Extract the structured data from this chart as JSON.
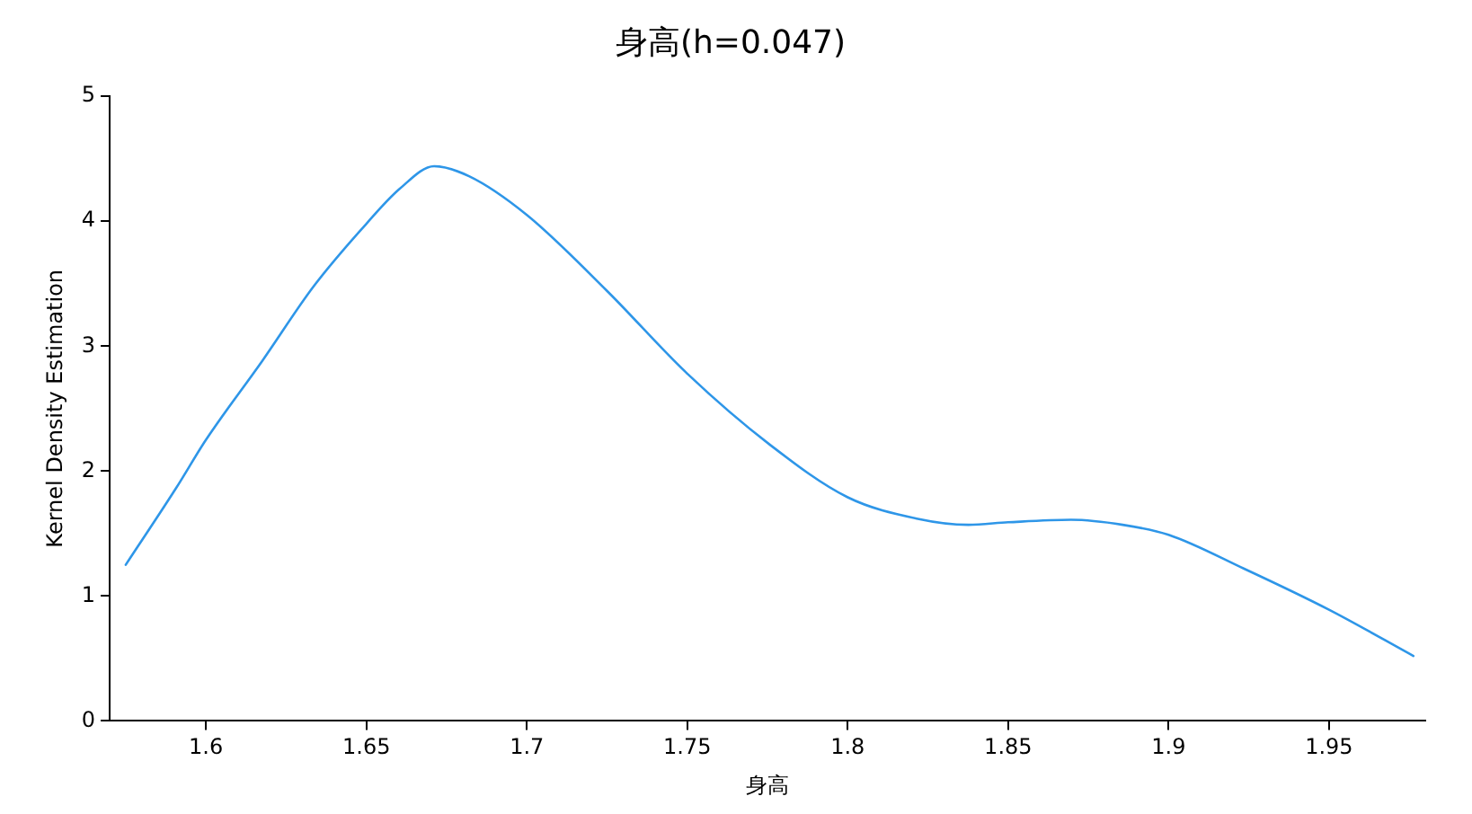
{
  "chart_data": {
    "type": "line",
    "title": "身高(h=0.047)",
    "xlabel": "身高",
    "ylabel": "Kernel Density Estimation",
    "xlim": [
      1.57,
      1.98
    ],
    "xticks": [
      1.6,
      1.65,
      1.7,
      1.75,
      1.8,
      1.85,
      1.9,
      1.95
    ],
    "ylim": [
      0,
      5
    ],
    "yticks": [
      0,
      1,
      2,
      3,
      4,
      5
    ],
    "grid": false,
    "legend": false,
    "marker": "none",
    "line_style": "solid",
    "series": [
      {
        "color": "#2e96e8",
        "x": [
          1.575,
          1.5906,
          1.6,
          1.6175,
          1.6336,
          1.65,
          1.6604,
          1.6711,
          1.682,
          1.7,
          1.7247,
          1.75,
          1.7758,
          1.8,
          1.8215,
          1.8376,
          1.85,
          1.8696,
          1.8857,
          1.9,
          1.9234,
          1.95,
          1.9763
        ],
        "values": [
          1.25,
          1.86,
          2.25,
          2.88,
          3.48,
          3.98,
          4.26,
          4.44,
          4.36,
          4.05,
          3.45,
          2.78,
          2.21,
          1.79,
          1.62,
          1.57,
          1.59,
          1.61,
          1.57,
          1.49,
          1.22,
          0.89,
          0.52
        ]
      }
    ]
  }
}
